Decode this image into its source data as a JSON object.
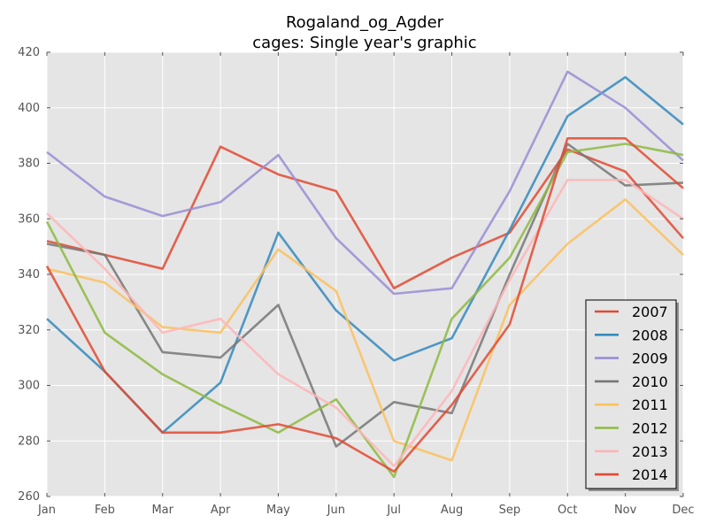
{
  "chart_data": {
    "type": "line",
    "title": "Rogaland_og_Agder",
    "subtitle": "cages: Single year's graphic",
    "xlabel": "",
    "ylabel": "",
    "categories": [
      "Jan",
      "Feb",
      "Mar",
      "Apr",
      "May",
      "Jun",
      "Jul",
      "Aug",
      "Sep",
      "Oct",
      "Nov",
      "Dec"
    ],
    "ylim": [
      260,
      420
    ],
    "yticks": [
      260,
      280,
      300,
      320,
      340,
      360,
      380,
      400,
      420
    ],
    "grid": true,
    "legend_position": "lower-right",
    "series": [
      {
        "name": "2007",
        "color": "#E24A33",
        "values": [
          352,
          347,
          342,
          386,
          376,
          370,
          335,
          346,
          355,
          385,
          377,
          353
        ]
      },
      {
        "name": "2008",
        "color": "#348ABD",
        "values": [
          324,
          305,
          283,
          301,
          355,
          327,
          309,
          317,
          356,
          397,
          411,
          394
        ]
      },
      {
        "name": "2009",
        "color": "#988ED5",
        "values": [
          384,
          368,
          361,
          366,
          383,
          353,
          333,
          335,
          370,
          413,
          400,
          381
        ]
      },
      {
        "name": "2010",
        "color": "#777777",
        "values": [
          351,
          347,
          312,
          310,
          329,
          278,
          294,
          290,
          340,
          387,
          372,
          373
        ]
      },
      {
        "name": "2011",
        "color": "#FBC15E",
        "values": [
          342,
          337,
          321,
          319,
          349,
          334,
          280,
          273,
          329,
          351,
          367,
          347
        ]
      },
      {
        "name": "2012",
        "color": "#8EBA42",
        "values": [
          359,
          319,
          304,
          293,
          283,
          295,
          267,
          324,
          346,
          384,
          387,
          383
        ]
      },
      {
        "name": "2013",
        "color": "#FFB5B8",
        "values": [
          362,
          342,
          319,
          324,
          304,
          292,
          271,
          298,
          338,
          374,
          374,
          360
        ]
      },
      {
        "name": "2014",
        "color": "#E24A33",
        "values": [
          343,
          305,
          283,
          283,
          286,
          281,
          269,
          293,
          322,
          389,
          389,
          371
        ]
      }
    ]
  }
}
